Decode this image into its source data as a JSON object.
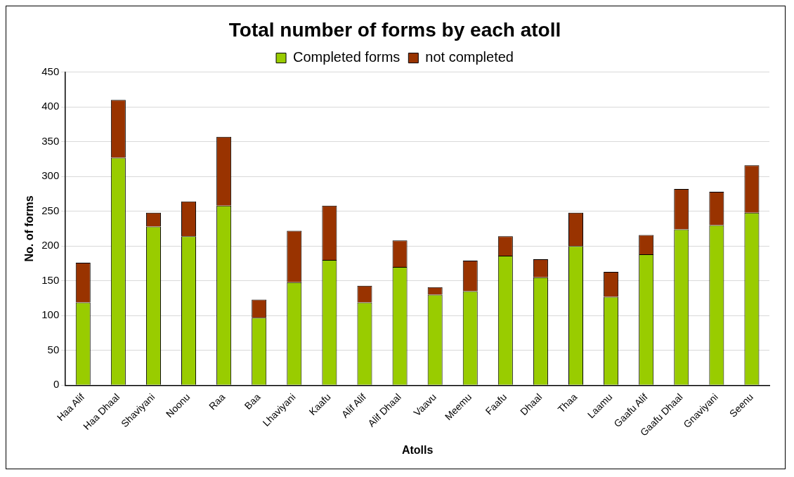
{
  "chart_data": {
    "type": "bar",
    "title": "Total number of forms by each atoll",
    "xlabel": "Atolls",
    "ylabel": "No. of forms",
    "categories": [
      "Haa Alif",
      "Haa Dhaal",
      "Shaviyani",
      "Noonu",
      "Raa",
      "Baa",
      "Lhaviyani",
      "Kaafu",
      "Alif Alif",
      "Alif Dhaal",
      "Vaavu",
      "Meemu",
      "Faafu",
      "Dhaal",
      "Thaa",
      "Laamu",
      "Gaafu Alif",
      "Gaafu Dhaal",
      "Gnaviyani",
      "Seenu"
    ],
    "series": [
      {
        "name": "Completed forms",
        "color": "#99cc00",
        "values": [
          119,
          327,
          228,
          214,
          258,
          97,
          148,
          180,
          119,
          170,
          130,
          135,
          186,
          155,
          200,
          127,
          188,
          224,
          230,
          248
        ]
      },
      {
        "name": "not completed",
        "color": "#993300",
        "values": [
          57,
          83,
          20,
          50,
          99,
          26,
          74,
          78,
          24,
          38,
          11,
          44,
          28,
          26,
          48,
          36,
          28,
          58,
          48,
          68
        ]
      }
    ],
    "stacked": true,
    "ylim": [
      0,
      450
    ],
    "yticks": [
      0,
      50,
      100,
      150,
      200,
      250,
      300,
      350,
      400,
      450
    ],
    "grid": "y",
    "legend": "top"
  }
}
